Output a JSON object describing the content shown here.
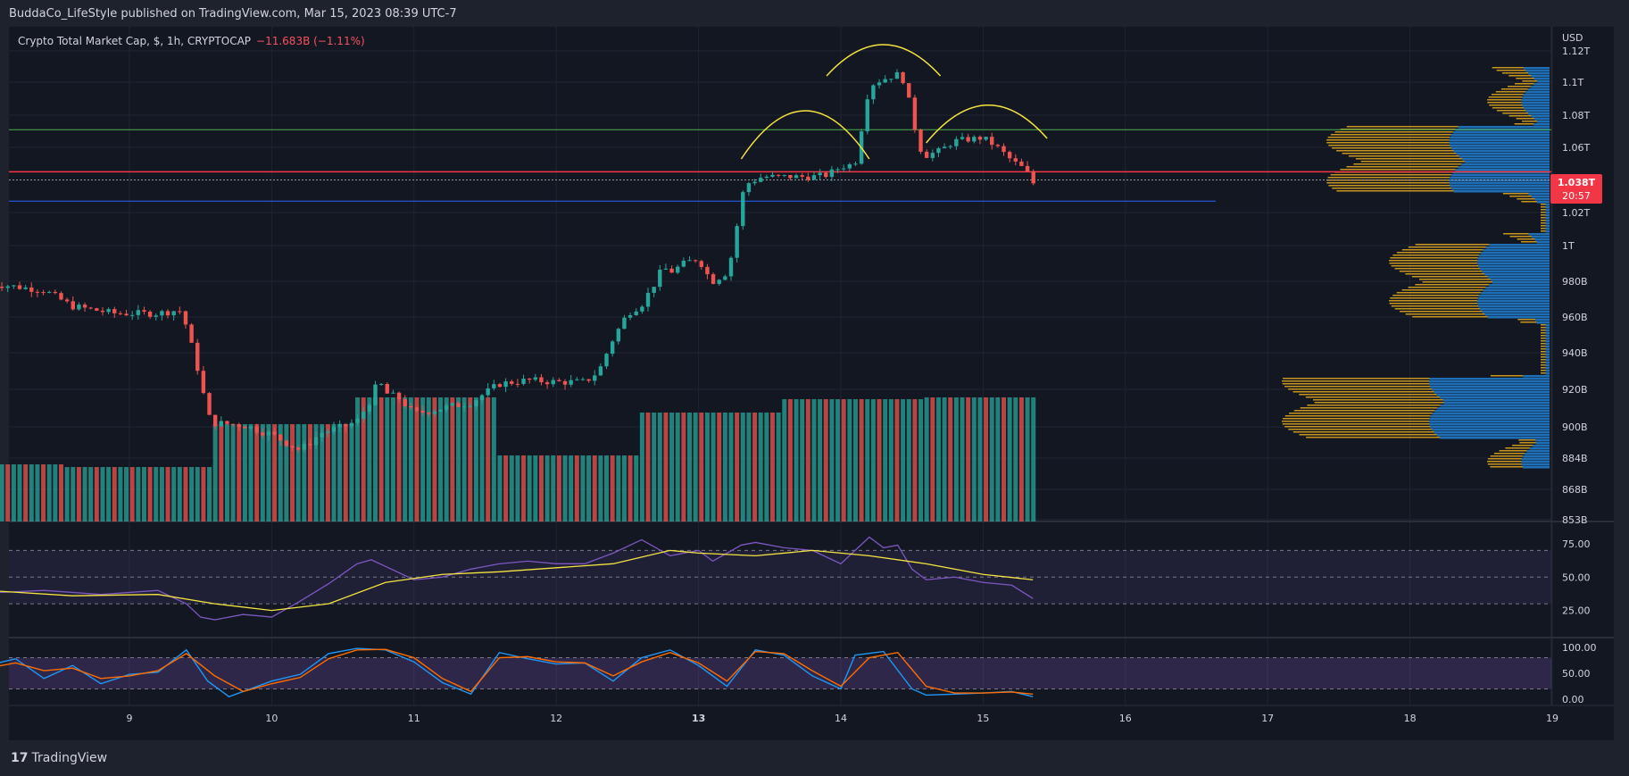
{
  "header": {
    "published": "BuddaCo_LifeStyle published on TradingView.com, Mar 15, 2023 08:39 UTC-7"
  },
  "legend": {
    "symbol": "Crypto Total Market Cap, $, 1h, CRYPTOCAP",
    "change": "−11.683B (−1.11%)"
  },
  "currency": "USD",
  "last_price": {
    "value": "1.038T",
    "countdown": "20:57"
  },
  "footer": {
    "brand": "TradingView"
  },
  "colors": {
    "up": "#26a69a",
    "down": "#ef5350",
    "background": "#131722",
    "rsi": "#7e57c2",
    "rsi_ma": "#f5e342",
    "stoch_k": "#2196f3",
    "stoch_d": "#ff6d00",
    "vp_blue": "#1e6fb5",
    "vp_gold": "#c8951e"
  },
  "chart_data": [
    {
      "type": "candlestick",
      "title": "Crypto Total Market Cap, $, 1h, CRYPTOCAP",
      "y_axis": {
        "ticks": [
          "1.12T",
          "1.1T",
          "1.08T",
          "1.06T",
          "1.02T",
          "1T",
          "980B",
          "960B",
          "940B",
          "920B",
          "900B",
          "884B",
          "868B",
          "853B"
        ]
      },
      "x_axis": {
        "ticks": [
          "9",
          "10",
          "11",
          "12",
          "13",
          "14",
          "15",
          "16",
          "17",
          "18",
          "19"
        ]
      },
      "close_path": [
        [
          8.1,
          978
        ],
        [
          8.4,
          975
        ],
        [
          8.6,
          966
        ],
        [
          8.9,
          962
        ],
        [
          9.2,
          962
        ],
        [
          9.35,
          964
        ],
        [
          9.4,
          955
        ],
        [
          9.45,
          940
        ],
        [
          9.5,
          925
        ],
        [
          9.55,
          906
        ],
        [
          9.6,
          902
        ],
        [
          9.8,
          901
        ],
        [
          10.0,
          896
        ],
        [
          10.1,
          892
        ],
        [
          10.2,
          888
        ],
        [
          10.35,
          897
        ],
        [
          10.5,
          900
        ],
        [
          10.6,
          903
        ],
        [
          10.7,
          915
        ],
        [
          10.75,
          925
        ],
        [
          10.8,
          918
        ],
        [
          10.9,
          915
        ],
        [
          11.0,
          907
        ],
        [
          11.2,
          910
        ],
        [
          11.4,
          913
        ],
        [
          11.5,
          918
        ],
        [
          11.6,
          923
        ],
        [
          11.8,
          925
        ],
        [
          12.0,
          924
        ],
        [
          12.2,
          924
        ],
        [
          12.3,
          930
        ],
        [
          12.4,
          948
        ],
        [
          12.5,
          962
        ],
        [
          12.6,
          967
        ],
        [
          12.7,
          980
        ],
        [
          12.75,
          988
        ],
        [
          12.8,
          985
        ],
        [
          12.9,
          990
        ],
        [
          13.0,
          993
        ],
        [
          13.05,
          985
        ],
        [
          13.1,
          980
        ],
        [
          13.2,
          985
        ],
        [
          13.25,
          1000
        ],
        [
          13.3,
          1030
        ],
        [
          13.35,
          1038
        ],
        [
          13.45,
          1042
        ],
        [
          13.6,
          1042
        ],
        [
          13.8,
          1042
        ],
        [
          13.9,
          1043
        ],
        [
          14.0,
          1048
        ],
        [
          14.1,
          1050
        ],
        [
          14.2,
          1098
        ],
        [
          14.3,
          1102
        ],
        [
          14.4,
          1105
        ],
        [
          14.45,
          1100
        ],
        [
          14.5,
          1080
        ],
        [
          14.55,
          1060
        ],
        [
          14.6,
          1055
        ],
        [
          14.7,
          1058
        ],
        [
          14.8,
          1064
        ],
        [
          15.0,
          1066
        ],
        [
          15.1,
          1060
        ],
        [
          15.2,
          1052
        ],
        [
          15.3,
          1046
        ],
        [
          15.35,
          1038
        ]
      ],
      "volume_profile_bands_approx": "high activity near 905B, 920B, 955B, 1.04T and 1.06T",
      "horizontal_lines": [
        {
          "value": 1071,
          "color": "#4caf50"
        },
        {
          "value": 1045,
          "color": "#f23645"
        },
        {
          "value": 1040,
          "color": "#9598a1",
          "style": "dotted"
        },
        {
          "value": 1027,
          "color": "#2962ff"
        }
      ],
      "annotations": "four yellow arcs outlining a head-and-shoulders pattern above the price (Mar 13.4 to 15.5)"
    },
    {
      "type": "line",
      "title": "",
      "y_axis": {
        "ticks": [
          "75.00",
          "50.00",
          "25.00"
        ],
        "ylim": [
          10,
          85
        ]
      },
      "bands": [
        30,
        50,
        70
      ],
      "series": [
        {
          "role": "rsi",
          "x": [
            8.0,
            8.4,
            8.8,
            9.2,
            9.4,
            9.5,
            9.6,
            9.8,
            10.0,
            10.2,
            10.4,
            10.6,
            10.7,
            10.8,
            11.0,
            11.2,
            11.4,
            11.6,
            11.8,
            12.0,
            12.2,
            12.4,
            12.6,
            12.8,
            13.0,
            13.1,
            13.2,
            13.3,
            13.4,
            13.6,
            13.8,
            14.0,
            14.2,
            14.3,
            14.4,
            14.5,
            14.6,
            14.8,
            15.0,
            15.2,
            15.35
          ],
          "values": [
            38,
            40,
            37,
            40,
            30,
            20,
            18,
            22,
            20,
            32,
            45,
            60,
            63,
            58,
            48,
            50,
            56,
            60,
            62,
            60,
            60,
            68,
            78,
            66,
            70,
            62,
            68,
            74,
            76,
            72,
            70,
            60,
            80,
            72,
            74,
            56,
            48,
            50,
            46,
            44,
            34
          ]
        },
        {
          "role": "rsi_ma",
          "x": [
            8.0,
            8.6,
            9.2,
            9.6,
            10.0,
            10.4,
            10.8,
            11.2,
            11.6,
            12.0,
            12.4,
            12.8,
            13.0,
            13.4,
            13.8,
            14.2,
            14.6,
            15.0,
            15.35
          ],
          "values": [
            40,
            36,
            37,
            30,
            25,
            30,
            46,
            52,
            54,
            57,
            60,
            70,
            68,
            66,
            70,
            66,
            60,
            52,
            48
          ]
        }
      ]
    },
    {
      "type": "line",
      "title": "",
      "y_axis": {
        "ticks": [
          "100.00",
          "50.00",
          "0.00"
        ],
        "ylim": [
          -5,
          105
        ]
      },
      "bands": [
        20,
        80
      ],
      "series": [
        {
          "role": "stoch_k",
          "x": [
            8.0,
            8.2,
            8.4,
            8.6,
            8.8,
            9.0,
            9.2,
            9.4,
            9.55,
            9.7,
            10.0,
            10.2,
            10.4,
            10.6,
            10.8,
            11.0,
            11.2,
            11.4,
            11.6,
            11.8,
            12.0,
            12.2,
            12.4,
            12.6,
            12.8,
            13.0,
            13.2,
            13.4,
            13.6,
            13.8,
            14.0,
            14.1,
            14.3,
            14.5,
            14.6,
            14.8,
            15.0,
            15.2,
            15.35
          ],
          "values": [
            65,
            78,
            40,
            65,
            30,
            48,
            52,
            95,
            35,
            5,
            35,
            48,
            88,
            98,
            95,
            72,
            32,
            10,
            90,
            78,
            68,
            70,
            35,
            80,
            95,
            65,
            25,
            95,
            85,
            45,
            20,
            85,
            92,
            20,
            8,
            10,
            12,
            15,
            5
          ]
        },
        {
          "role": "stoch_d",
          "x": [
            8.0,
            8.2,
            8.4,
            8.6,
            8.8,
            9.0,
            9.2,
            9.4,
            9.6,
            9.8,
            10.0,
            10.2,
            10.4,
            10.6,
            10.8,
            11.0,
            11.2,
            11.4,
            11.6,
            11.8,
            12.0,
            12.2,
            12.4,
            12.6,
            12.8,
            13.0,
            13.2,
            13.4,
            13.6,
            13.8,
            14.0,
            14.2,
            14.4,
            14.6,
            14.8,
            15.0,
            15.2,
            15.35
          ],
          "values": [
            60,
            70,
            55,
            60,
            40,
            45,
            55,
            88,
            45,
            15,
            30,
            42,
            78,
            95,
            96,
            80,
            40,
            15,
            80,
            82,
            72,
            70,
            45,
            72,
            90,
            70,
            35,
            92,
            88,
            55,
            25,
            80,
            90,
            25,
            12,
            12,
            14,
            10
          ]
        }
      ]
    }
  ]
}
